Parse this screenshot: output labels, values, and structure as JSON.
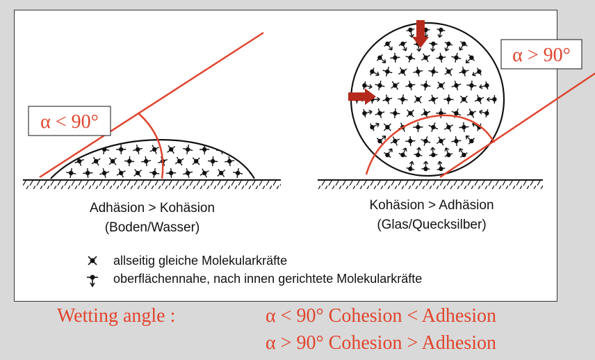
{
  "left_diagram": {
    "angle_label": "α < 90°",
    "caption_line1": "Adhäsion > Kohäsion",
    "caption_line2": "(Boden/Wasser)"
  },
  "right_diagram": {
    "angle_label": "α > 90°",
    "caption_line1": "Kohäsion > Adhäsion",
    "caption_line2": "(Glas/Quecksilber)"
  },
  "legend": {
    "item1": "allseitig gleiche Molekularkräfte",
    "item2": "oberflächennahe, nach innen gerichtete Molekularkräfte"
  },
  "caption": {
    "label": "Wetting angle :",
    "line1": "α < 90° Cohesion < Adhesion",
    "line2": "α  > 90° Cohesion > Adhesion"
  },
  "colors": {
    "accent": "#e0452e",
    "arrow": "#b52a1c",
    "ink": "#111111"
  }
}
